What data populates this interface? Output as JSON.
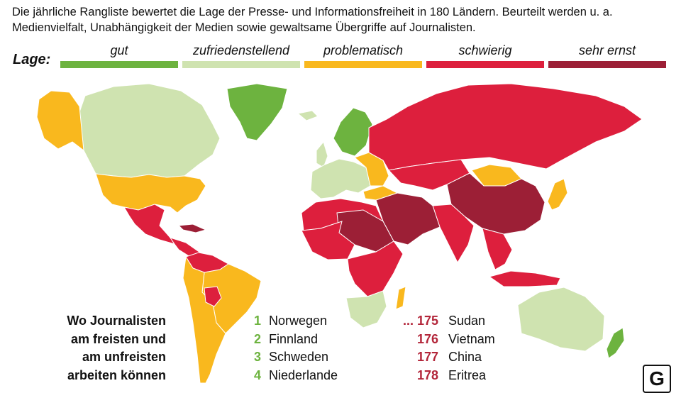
{
  "intro": "Die jährliche Rangliste bewertet die Lage der Presse- und Informationsfreiheit in 180 Ländern. Beurteilt werden u. a. Medienvielfalt, Unabhängigkeit der Medien sowie gewaltsame Übergriffe auf Journalisten.",
  "legend": {
    "label": "Lage:",
    "items": [
      {
        "label": "gut",
        "color": "#6db33f"
      },
      {
        "label": "zufriedenstellend",
        "color": "#cfe3b0"
      },
      {
        "label": "problematisch",
        "color": "#f9b81e"
      },
      {
        "label": "schwierig",
        "color": "#dd1f3d"
      },
      {
        "label": "sehr ernst",
        "color": "#9c1f36"
      }
    ]
  },
  "ranking": {
    "title_lines": [
      "Wo Journalisten",
      "am freisten und",
      "am unfreisten",
      "arbeiten können"
    ],
    "best": [
      {
        "rank": "1",
        "country": "Norwegen"
      },
      {
        "rank": "2",
        "country": "Finnland"
      },
      {
        "rank": "3",
        "country": "Schweden"
      },
      {
        "rank": "4",
        "country": "Niederlande"
      }
    ],
    "worst": [
      {
        "rank": "... 175",
        "country": "Sudan"
      },
      {
        "rank": "176",
        "country": "Vietnam"
      },
      {
        "rank": "177",
        "country": "China"
      },
      {
        "rank": "178",
        "country": "Eritrea"
      }
    ]
  },
  "logo_letter": "G"
}
